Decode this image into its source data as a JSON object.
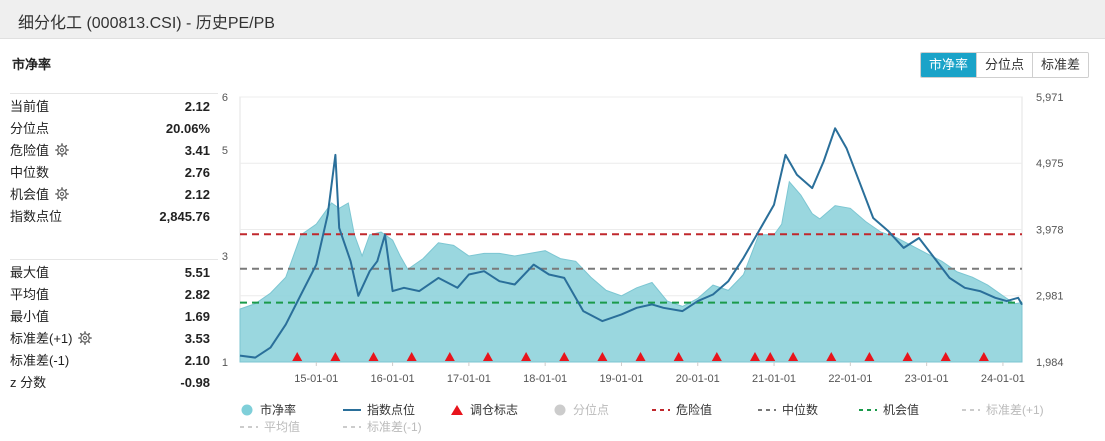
{
  "window": {
    "title": "细分化工 (000813.CSI) - 历史PE/PB"
  },
  "section_title": "市净率",
  "tabs": [
    {
      "label": "市净率",
      "active": true
    },
    {
      "label": "分位点",
      "active": false
    },
    {
      "label": "标准差",
      "active": false
    }
  ],
  "stats_top": [
    {
      "label": "当前值",
      "value": "2.12",
      "icon": ""
    },
    {
      "label": "分位点",
      "value": "20.06%",
      "icon": ""
    },
    {
      "label": "危险值",
      "value": "3.41",
      "icon": "gear-icon"
    },
    {
      "label": "中位数",
      "value": "2.76",
      "icon": ""
    },
    {
      "label": "机会值",
      "value": "2.12",
      "icon": "gear-icon"
    },
    {
      "label": "指数点位",
      "value": "2,845.76",
      "icon": ""
    }
  ],
  "stats_bottom": [
    {
      "label": "最大值",
      "value": "5.51",
      "icon": ""
    },
    {
      "label": "平均值",
      "value": "2.82",
      "icon": ""
    },
    {
      "label": "最小值",
      "value": "1.69",
      "icon": ""
    },
    {
      "label": "标准差(+1)",
      "value": "3.53",
      "icon": "gear-icon"
    },
    {
      "label": "标准差(-1)",
      "value": "2.10",
      "icon": ""
    },
    {
      "label": "z 分数",
      "value": "-0.98",
      "icon": ""
    }
  ],
  "legend": [
    {
      "label": "市净率",
      "kind": "dot",
      "color": "#7fcfd9",
      "active": true
    },
    {
      "label": "指数点位",
      "kind": "line",
      "color": "#2a6f9a",
      "active": true
    },
    {
      "label": "调仓标志",
      "kind": "triangle",
      "color": "#e8141c",
      "active": true
    },
    {
      "label": "分位点",
      "kind": "dot",
      "color": "#cccccc",
      "active": false
    },
    {
      "label": "危险值",
      "kind": "dash",
      "color": "#c0282d",
      "active": true
    },
    {
      "label": "中位数",
      "kind": "dash",
      "color": "#777777",
      "active": true
    },
    {
      "label": "机会值",
      "kind": "dash",
      "color": "#1a9a4a",
      "active": true
    },
    {
      "label": "标准差(+1)",
      "kind": "dash",
      "color": "#cccccc",
      "active": false
    },
    {
      "label": "平均值",
      "kind": "dash",
      "color": "#cccccc",
      "active": false
    },
    {
      "label": "标准差(-1)",
      "kind": "dash",
      "color": "#cccccc",
      "active": false
    }
  ],
  "chart_data": {
    "type": "area",
    "x_tick_labels": [
      "15-01-01",
      "16-01-01",
      "17-01-01",
      "18-01-01",
      "19-01-01",
      "20-01-01",
      "21-01-01",
      "22-01-01",
      "23-01-01",
      "24-01-01"
    ],
    "y_left": {
      "ticks": [
        "1",
        "3",
        "5",
        "6"
      ],
      "range": [
        1,
        6
      ]
    },
    "y_right": {
      "ticks": [
        "1,984",
        "2,981",
        "3,978",
        "4,975",
        "5,971"
      ],
      "range": [
        1984,
        5971
      ]
    },
    "reference_lines": {
      "danger": 3.41,
      "median": 2.76,
      "opportunity": 2.12
    },
    "series": [
      {
        "name": "市净率",
        "axis": "left",
        "color": "#7fcfd9",
        "points": [
          [
            14.0,
            2.0
          ],
          [
            14.2,
            2.1
          ],
          [
            14.4,
            2.3
          ],
          [
            14.6,
            2.6
          ],
          [
            14.8,
            3.4
          ],
          [
            15.0,
            3.6
          ],
          [
            15.2,
            4.0
          ],
          [
            15.3,
            3.9
          ],
          [
            15.42,
            4.0
          ],
          [
            15.5,
            3.4
          ],
          [
            15.6,
            3.0
          ],
          [
            15.7,
            3.4
          ],
          [
            15.85,
            3.45
          ],
          [
            16.0,
            3.3
          ],
          [
            16.1,
            3.0
          ],
          [
            16.2,
            2.75
          ],
          [
            16.4,
            2.95
          ],
          [
            16.6,
            3.25
          ],
          [
            16.8,
            3.2
          ],
          [
            17.0,
            3.0
          ],
          [
            17.2,
            3.05
          ],
          [
            17.4,
            3.05
          ],
          [
            17.6,
            3.0
          ],
          [
            17.8,
            3.05
          ],
          [
            18.0,
            3.1
          ],
          [
            18.2,
            2.95
          ],
          [
            18.4,
            2.9
          ],
          [
            18.6,
            2.6
          ],
          [
            18.8,
            2.35
          ],
          [
            19.0,
            2.25
          ],
          [
            19.2,
            2.4
          ],
          [
            19.4,
            2.5
          ],
          [
            19.6,
            2.15
          ],
          [
            19.8,
            2.05
          ],
          [
            20.0,
            2.2
          ],
          [
            20.2,
            2.45
          ],
          [
            20.4,
            2.35
          ],
          [
            20.6,
            2.65
          ],
          [
            20.8,
            3.4
          ],
          [
            21.0,
            3.4
          ],
          [
            21.1,
            3.6
          ],
          [
            21.2,
            4.4
          ],
          [
            21.35,
            4.15
          ],
          [
            21.5,
            3.8
          ],
          [
            21.6,
            3.7
          ],
          [
            21.8,
            3.95
          ],
          [
            22.0,
            3.9
          ],
          [
            22.2,
            3.65
          ],
          [
            22.4,
            3.45
          ],
          [
            22.6,
            3.35
          ],
          [
            22.8,
            3.2
          ],
          [
            23.0,
            3.05
          ],
          [
            23.2,
            2.9
          ],
          [
            23.4,
            2.7
          ],
          [
            23.6,
            2.6
          ],
          [
            23.8,
            2.45
          ],
          [
            24.0,
            2.25
          ],
          [
            24.15,
            2.1
          ],
          [
            24.25,
            2.12
          ]
        ]
      },
      {
        "name": "指数点位",
        "axis": "right",
        "color": "#2a6f9a",
        "points": [
          [
            14.0,
            2080
          ],
          [
            14.2,
            2050
          ],
          [
            14.4,
            2200
          ],
          [
            14.6,
            2550
          ],
          [
            14.8,
            3000
          ],
          [
            15.0,
            3450
          ],
          [
            15.15,
            4200
          ],
          [
            15.25,
            5100
          ],
          [
            15.3,
            4000
          ],
          [
            15.45,
            3500
          ],
          [
            15.55,
            2980
          ],
          [
            15.7,
            3350
          ],
          [
            15.8,
            3500
          ],
          [
            15.9,
            3900
          ],
          [
            16.0,
            3050
          ],
          [
            16.15,
            3100
          ],
          [
            16.35,
            3050
          ],
          [
            16.6,
            3250
          ],
          [
            16.85,
            3100
          ],
          [
            17.0,
            3300
          ],
          [
            17.2,
            3350
          ],
          [
            17.4,
            3200
          ],
          [
            17.6,
            3150
          ],
          [
            17.85,
            3450
          ],
          [
            18.05,
            3300
          ],
          [
            18.25,
            3250
          ],
          [
            18.5,
            2750
          ],
          [
            18.75,
            2600
          ],
          [
            19.0,
            2700
          ],
          [
            19.2,
            2800
          ],
          [
            19.4,
            2850
          ],
          [
            19.55,
            2800
          ],
          [
            19.8,
            2750
          ],
          [
            20.0,
            2900
          ],
          [
            20.2,
            3000
          ],
          [
            20.4,
            3200
          ],
          [
            20.6,
            3550
          ],
          [
            20.8,
            3950
          ],
          [
            21.0,
            4350
          ],
          [
            21.15,
            5100
          ],
          [
            21.3,
            4800
          ],
          [
            21.5,
            4600
          ],
          [
            21.65,
            5000
          ],
          [
            21.8,
            5500
          ],
          [
            21.95,
            5200
          ],
          [
            22.1,
            4750
          ],
          [
            22.3,
            4150
          ],
          [
            22.5,
            3950
          ],
          [
            22.7,
            3700
          ],
          [
            22.9,
            3850
          ],
          [
            23.1,
            3550
          ],
          [
            23.3,
            3250
          ],
          [
            23.5,
            3100
          ],
          [
            23.7,
            3050
          ],
          [
            23.9,
            2950
          ],
          [
            24.05,
            2900
          ],
          [
            24.2,
            2950
          ],
          [
            24.25,
            2845.76
          ]
        ]
      }
    ],
    "rebalance_markers_x": [
      14.75,
      15.25,
      15.75,
      16.25,
      16.75,
      17.25,
      17.75,
      18.25,
      18.75,
      19.25,
      19.75,
      20.25,
      20.75,
      20.95,
      21.25,
      21.75,
      22.25,
      22.75,
      23.25,
      23.75
    ]
  }
}
